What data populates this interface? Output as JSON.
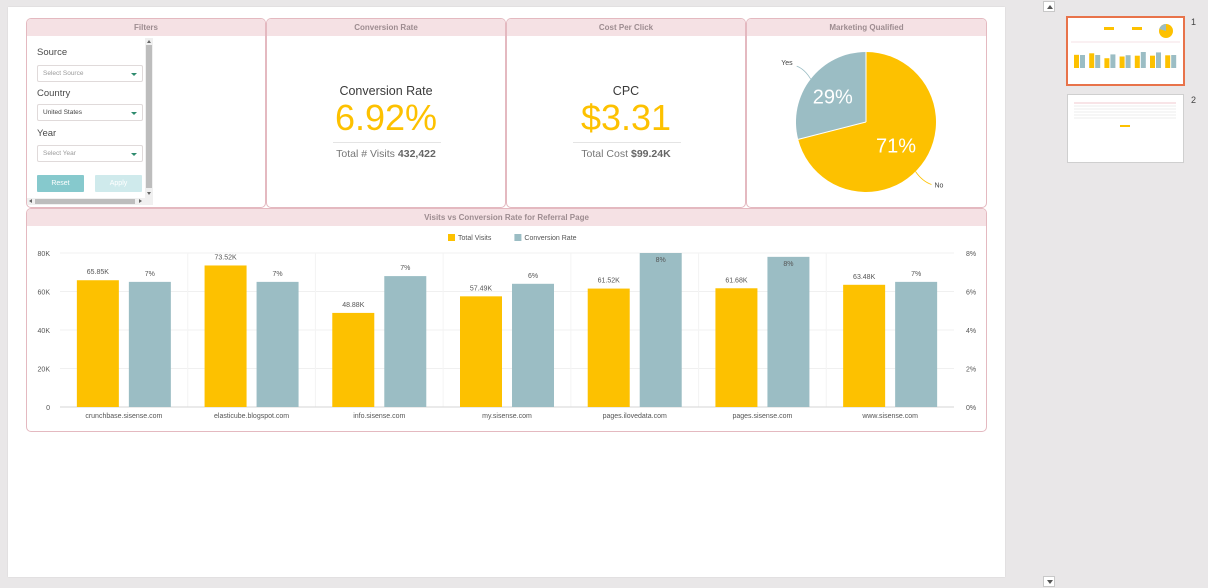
{
  "filters": {
    "header": "Filters",
    "source_label": "Source",
    "source_placeholder": "Select Source",
    "country_label": "Country",
    "country_value": "United States",
    "year_label": "Year",
    "year_placeholder": "Select Year",
    "reset_label": "Reset",
    "apply_label": "Apply"
  },
  "conversion": {
    "header": "Conversion Rate",
    "title": "Conversion Rate",
    "value": "6.92%",
    "sub_label": "Total # Visits",
    "sub_value": "432,422"
  },
  "cpc": {
    "header": "Cost Per Click",
    "title": "CPC",
    "value": "$3.31",
    "sub_label": "Total Cost",
    "sub_value": "$99.24K"
  },
  "marketing": {
    "header": "Marketing Qualified"
  },
  "visits_chart": {
    "header": "Visits vs Conversion Rate for Referral Page"
  },
  "colors": {
    "yellow": "#fdc100",
    "teal": "#9bbdc4",
    "panel_border": "#e4b9c0",
    "accent": "#e8734a"
  },
  "slides": {
    "items": [
      {
        "number": "1"
      },
      {
        "number": "2"
      }
    ]
  },
  "chart_data": [
    {
      "type": "pie",
      "labels": [
        "Yes",
        "No"
      ],
      "values": [
        29,
        71
      ],
      "value_labels": [
        "29%",
        "71%"
      ],
      "colors": [
        "#9bbdc4",
        "#fdc100"
      ]
    },
    {
      "type": "bar",
      "categories": [
        "crunchbase.sisense.com",
        "elasticube.blogspot.com",
        "info.sisense.com",
        "my.sisense.com",
        "pages.ilovedata.com",
        "pages.sisense.com",
        "www.sisense.com"
      ],
      "series": [
        {
          "name": "Total Visits",
          "axis": "left",
          "color": "#fdc100",
          "values": [
            65850,
            73520,
            48880,
            57490,
            61520,
            61680,
            63480
          ],
          "labels": [
            "65.85K",
            "73.52K",
            "48.88K",
            "57.49K",
            "61.52K",
            "61.68K",
            "63.48K"
          ]
        },
        {
          "name": "Conversion Rate",
          "axis": "right",
          "color": "#9bbdc4",
          "values": [
            6.5,
            6.5,
            6.8,
            6.4,
            8.0,
            7.8,
            6.5
          ],
          "labels": [
            "7%",
            "7%",
            "7%",
            "6%",
            "8%",
            "8%",
            "7%"
          ]
        }
      ],
      "y_left": {
        "min": 0,
        "max": 80000,
        "ticks": [
          "0",
          "20K",
          "40K",
          "60K",
          "80K"
        ]
      },
      "y_right": {
        "min": 0,
        "max": 8,
        "ticks": [
          "0%",
          "2%",
          "4%",
          "6%",
          "8%"
        ]
      },
      "legend": "top-center",
      "grid": true
    }
  ]
}
